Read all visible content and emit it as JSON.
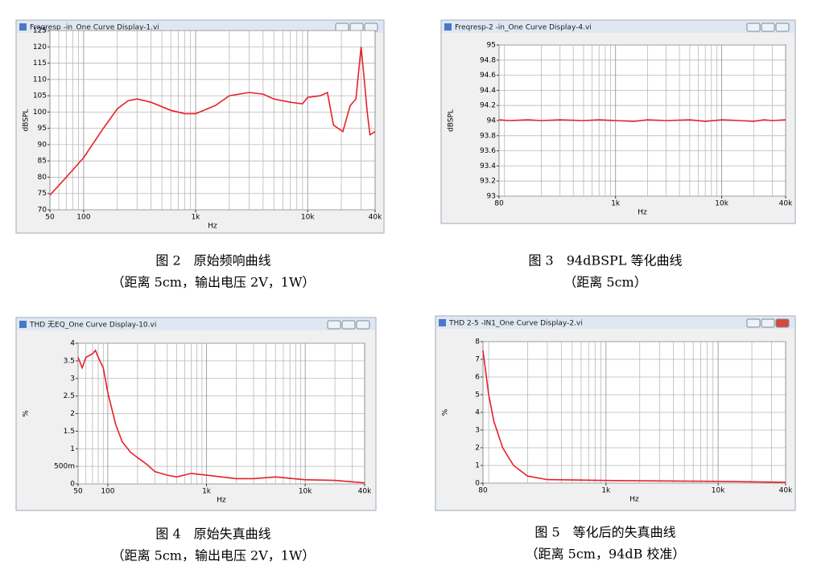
{
  "chart_data": [
    {
      "type": "line",
      "window_title": "Freqresp -in_One Curve Display-1.vi",
      "ylabel": "dBSPL",
      "xlabel": "Hz",
      "caption": "图 2　原始频响曲线",
      "subcaption": "（距离 5cm，输出电压 2V，1W）",
      "log_x": true,
      "grid": true,
      "color": "#e8202a",
      "xlim": [
        50,
        40000
      ],
      "ylim": [
        70,
        125
      ],
      "xticks": [
        50,
        100,
        {
          "value": 1000,
          "label": "1k"
        },
        {
          "value": 10000,
          "label": "10k"
        },
        {
          "value": 40000,
          "label": "40k"
        }
      ],
      "yticks": [
        70,
        75,
        80,
        85,
        90,
        95,
        100,
        105,
        110,
        115,
        120,
        125
      ],
      "x": [
        50,
        70,
        100,
        150,
        200,
        250,
        300,
        400,
        600,
        800,
        1000,
        1500,
        2000,
        3000,
        4000,
        5000,
        7000,
        9000,
        10000,
        13000,
        15000,
        17000,
        20600,
        24000,
        27000,
        30000,
        32000,
        34000,
        36000,
        40000
      ],
      "values": [
        74.5,
        80,
        86,
        95,
        101,
        103.5,
        104,
        103,
        100.5,
        99.5,
        99.5,
        102,
        105,
        106,
        105.5,
        104,
        103,
        102.5,
        104.5,
        105,
        106,
        96,
        94,
        102,
        104,
        120,
        110,
        100,
        93,
        94
      ]
    },
    {
      "type": "line",
      "window_title": "Freqresp-2 -in_One Curve Display-4.vi",
      "ylabel": "dBSPL",
      "xlabel": "Hz",
      "caption": "图 3　94dBSPL 等化曲线",
      "subcaption": "（距离 5cm）",
      "log_x": true,
      "grid": true,
      "color": "#e8202a",
      "xlim": [
        80,
        40000
      ],
      "ylim": [
        93,
        95
      ],
      "xticks": [
        80,
        {
          "value": 1000,
          "label": "1k"
        },
        {
          "value": 10000,
          "label": "10k"
        },
        {
          "value": 40000,
          "label": "40k"
        }
      ],
      "yticks": [
        93,
        93.2,
        93.4,
        93.6,
        93.8,
        94,
        94.2,
        94.4,
        94.6,
        94.8,
        95
      ],
      "x": [
        80,
        100,
        150,
        200,
        300,
        500,
        700,
        1000,
        1500,
        2000,
        3000,
        5000,
        7000,
        10000,
        15000,
        20000,
        25000,
        30000,
        40000
      ],
      "values": [
        94.01,
        94,
        94.01,
        94,
        94.01,
        94,
        94.01,
        94,
        93.99,
        94.01,
        94,
        94.01,
        93.99,
        94.01,
        94,
        93.99,
        94.01,
        94,
        94.01
      ]
    },
    {
      "type": "line",
      "window_title": "THD 无EQ_One Curve Display-10.vi",
      "ylabel": "%",
      "xlabel": "Hz",
      "caption": "图 4　原始失真曲线",
      "subcaption": "（距离 5cm，输出电压 2V，1W）",
      "log_x": true,
      "grid": true,
      "color": "#e8202a",
      "xlim": [
        50,
        40000
      ],
      "ylim": [
        0,
        4
      ],
      "xticks": [
        50,
        100,
        {
          "value": 1000,
          "label": "1k"
        },
        {
          "value": 10000,
          "label": "10k"
        },
        {
          "value": 40000,
          "label": "40k"
        }
      ],
      "yticks": [
        0,
        {
          "value": 0.5,
          "label": "500m"
        },
        1,
        1.5,
        2,
        2.5,
        3,
        3.5,
        4
      ],
      "x": [
        50,
        55,
        60,
        70,
        75,
        80,
        90,
        100,
        120,
        140,
        170,
        200,
        250,
        300,
        400,
        500,
        700,
        1000,
        2000,
        3000,
        5000,
        10000,
        20000,
        40000
      ],
      "values": [
        3.6,
        3.3,
        3.6,
        3.7,
        3.8,
        3.6,
        3.3,
        2.6,
        1.7,
        1.2,
        0.9,
        0.75,
        0.55,
        0.35,
        0.25,
        0.2,
        0.3,
        0.25,
        0.15,
        0.15,
        0.2,
        0.12,
        0.1,
        0.03
      ]
    },
    {
      "type": "line",
      "window_title": "THD 2-5 -IN1_One Curve Display-2.vi",
      "ylabel": "%",
      "xlabel": "Hz",
      "caption": "图 5　等化后的失真曲线",
      "subcaption": "（距离 5cm，94dB 校准）",
      "log_x": true,
      "grid": true,
      "color": "#e8202a",
      "xlim": [
        80,
        40000
      ],
      "ylim": [
        0,
        8
      ],
      "xticks": [
        80,
        {
          "value": 1000,
          "label": "1k"
        },
        {
          "value": 10000,
          "label": "10k"
        },
        {
          "value": 40000,
          "label": "40k"
        }
      ],
      "yticks": [
        0,
        1,
        2,
        3,
        4,
        5,
        6,
        7,
        8
      ],
      "x": [
        80,
        90,
        100,
        120,
        150,
        200,
        300,
        1000,
        10000,
        40000
      ],
      "values": [
        7.5,
        5,
        3.5,
        2,
        1,
        0.4,
        0.2,
        0.15,
        0.1,
        0.05
      ]
    }
  ]
}
